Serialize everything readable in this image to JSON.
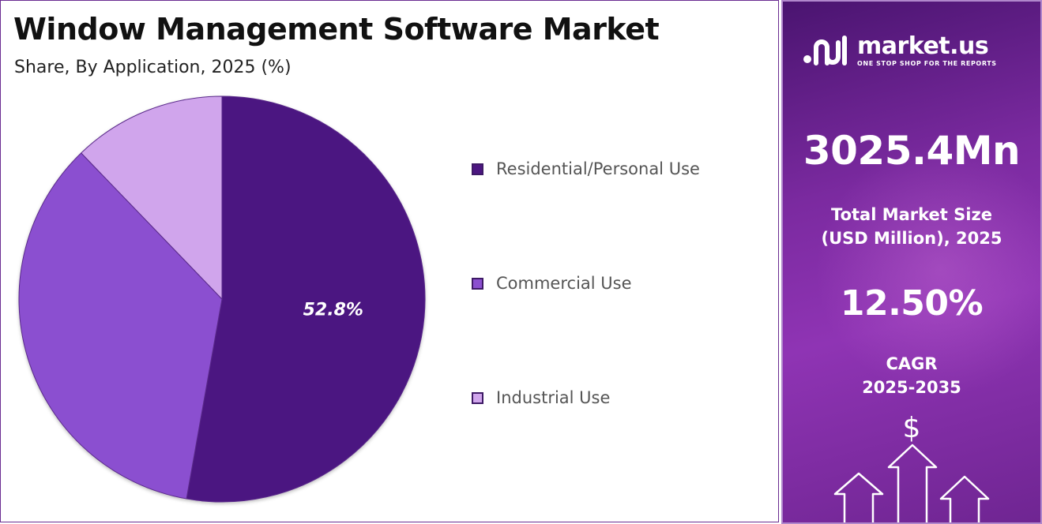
{
  "chart_data": {
    "type": "pie",
    "title": "Window Management Software Market",
    "subtitle": "Share, By Application, 2025 (%)",
    "slices": [
      {
        "label": "Residential/Personal Use",
        "value": 52.8,
        "color": "#4c1681",
        "data_label": "52.8%"
      },
      {
        "label": "Commercial Use",
        "value": 35.0,
        "color": "#8b4fd0",
        "data_label": ""
      },
      {
        "label": "Industrial Use",
        "value": 12.2,
        "color": "#d0a5ec",
        "data_label": ""
      }
    ],
    "legend_position": "right"
  },
  "sidebar": {
    "brand_name": "market.us",
    "brand_tagline": "ONE STOP SHOP FOR THE REPORTS",
    "market_size_value": "3025.4Mn",
    "market_size_label_line1": "Total Market Size",
    "market_size_label_line2": "(USD Million), 2025",
    "cagr_value": "12.50%",
    "cagr_label_line1": "CAGR",
    "cagr_label_line2": "2025-2035",
    "currency_symbol": "$",
    "icon": "dollar-growth-arrows-icon"
  }
}
